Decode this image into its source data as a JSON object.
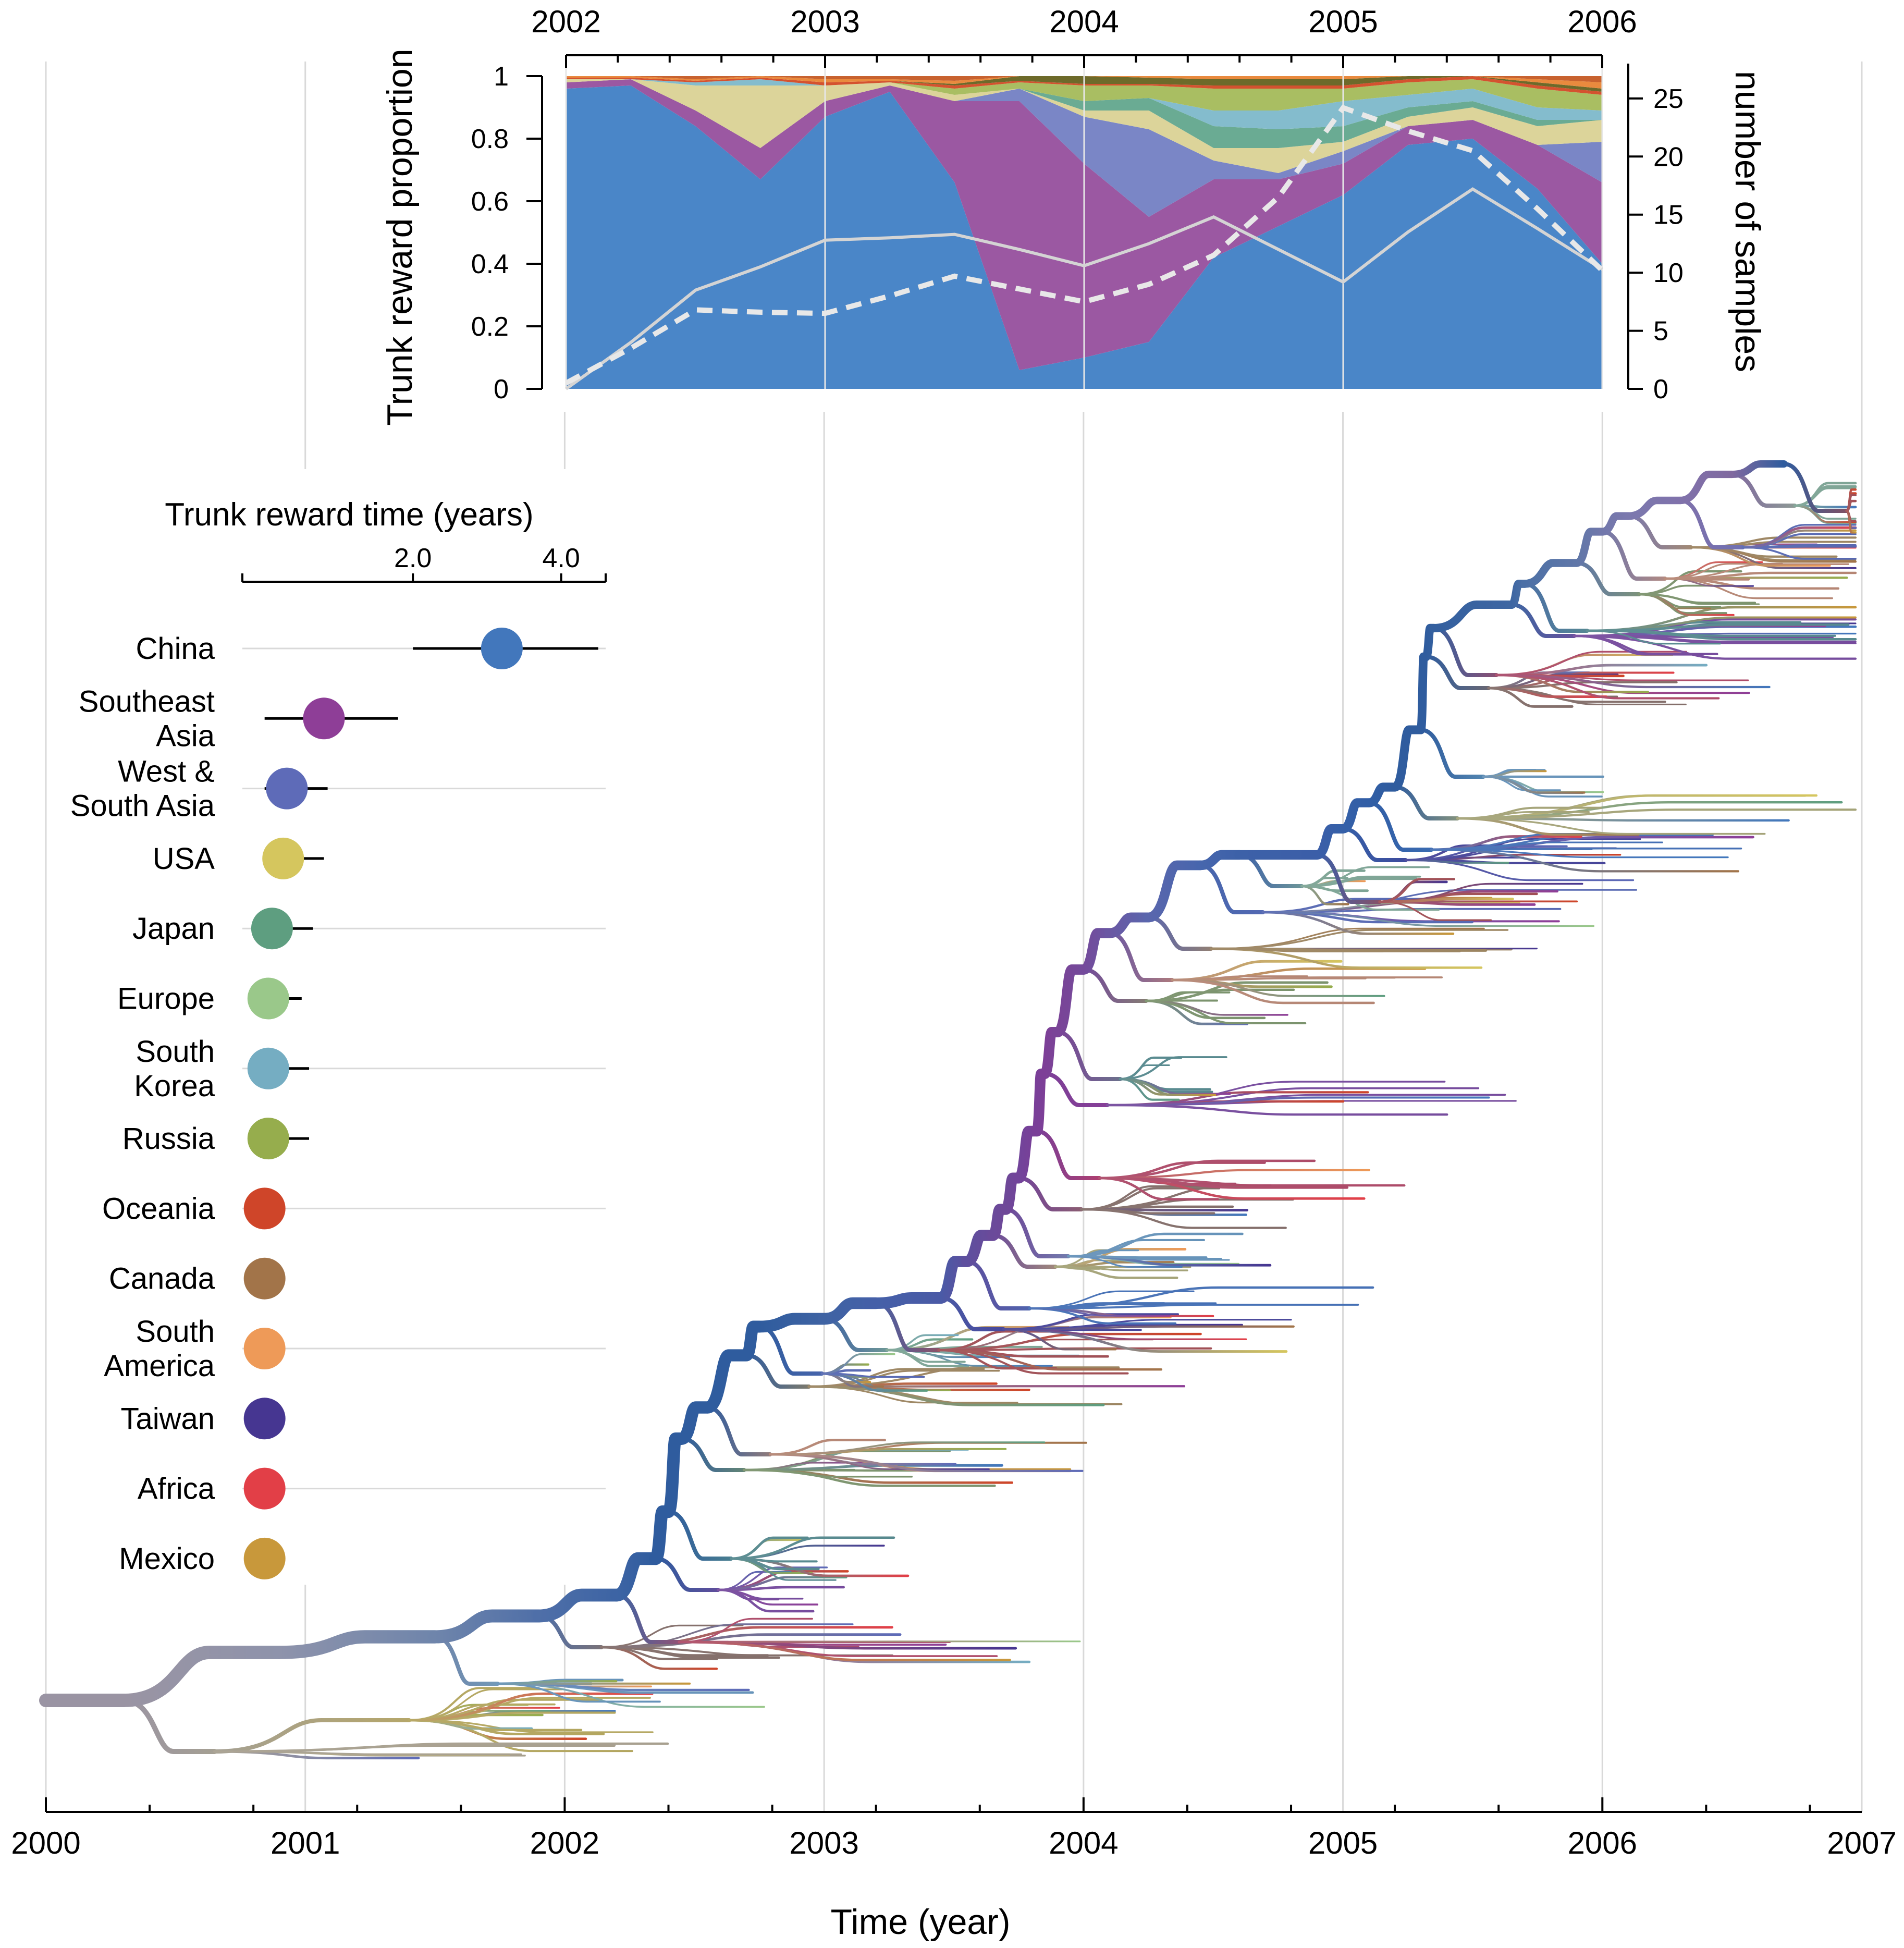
{
  "chart_data": [
    {
      "type": "area",
      "panel": "trunk-proportion",
      "ylabel": "Trunk reward proportion",
      "ylabel_right": "number of samples",
      "x": [
        2002.0,
        2002.25,
        2002.5,
        2002.75,
        2003.0,
        2003.25,
        2003.5,
        2003.75,
        2004.0,
        2004.25,
        2004.5,
        2004.75,
        2005.0,
        2005.25,
        2005.5,
        2005.75,
        2006.0
      ],
      "x_ticks": [
        "2002",
        "2003",
        "2004",
        "2005",
        "2006"
      ],
      "ylim": [
        0,
        1
      ],
      "y_ticks": [
        "0",
        "0.2",
        "0.4",
        "0.6",
        "0.8",
        "1"
      ],
      "y2lim": [
        0,
        28
      ],
      "y2_ticks": [
        "0",
        "5",
        "10",
        "15",
        "20",
        "25"
      ],
      "series": [
        {
          "region": "China",
          "color": "#4a86c8",
          "values": [
            0.96,
            0.97,
            0.84,
            0.67,
            0.87,
            0.95,
            0.66,
            0.06,
            0.1,
            0.15,
            0.42,
            0.52,
            0.62,
            0.78,
            0.8,
            0.64,
            0.4
          ]
        },
        {
          "region": "Southeast Asia",
          "color": "#9b58a2",
          "values": [
            0.02,
            0.02,
            0.05,
            0.1,
            0.05,
            0.02,
            0.26,
            0.86,
            0.62,
            0.4,
            0.25,
            0.15,
            0.1,
            0.06,
            0.06,
            0.14,
            0.26
          ]
        },
        {
          "region": "West & South Asia",
          "color": "#7a86c6",
          "values": [
            0.0,
            0.0,
            0.0,
            0.0,
            0.0,
            0.0,
            0.0,
            0.04,
            0.15,
            0.28,
            0.06,
            0.02,
            0.04,
            0.0,
            0.0,
            0.0,
            0.13
          ]
        },
        {
          "region": "USA",
          "color": "#dcd49a",
          "values": [
            0.01,
            0.0,
            0.08,
            0.2,
            0.05,
            0.01,
            0.02,
            0.0,
            0.02,
            0.06,
            0.04,
            0.08,
            0.03,
            0.03,
            0.04,
            0.06,
            0.07
          ]
        },
        {
          "region": "Japan",
          "color": "#6aab93",
          "values": [
            0.0,
            0.0,
            0.0,
            0.0,
            0.0,
            0.0,
            0.0,
            0.0,
            0.03,
            0.04,
            0.07,
            0.06,
            0.05,
            0.03,
            0.02,
            0.02,
            0.0
          ]
        },
        {
          "region": "Europe",
          "color": "#9cc98a",
          "values": [
            0.0,
            0.0,
            0.0,
            0.0,
            0.0,
            0.0,
            0.0,
            0.0,
            0.0,
            0.0,
            0.0,
            0.0,
            0.0,
            0.0,
            0.0,
            0.0,
            0.0
          ]
        },
        {
          "region": "South Korea",
          "color": "#84bccd",
          "values": [
            0.0,
            0.0,
            0.01,
            0.02,
            0.0,
            0.0,
            0.0,
            0.0,
            0.0,
            0.0,
            0.05,
            0.06,
            0.08,
            0.04,
            0.04,
            0.04,
            0.03
          ]
        },
        {
          "region": "Russia",
          "color": "#a9be62",
          "values": [
            0.0,
            0.0,
            0.0,
            0.0,
            0.0,
            0.0,
            0.02,
            0.02,
            0.05,
            0.04,
            0.07,
            0.07,
            0.04,
            0.04,
            0.03,
            0.06,
            0.05
          ]
        },
        {
          "region": "Oceania",
          "color": "#d4522f",
          "values": [
            0.005,
            0.005,
            0.005,
            0.005,
            0.01,
            0.005,
            0.01,
            0.005,
            0.005,
            0.005,
            0.01,
            0.01,
            0.01,
            0.01,
            0.01,
            0.01,
            0.01
          ]
        },
        {
          "region": "Canada",
          "color": "#6d6a2a",
          "values": [
            0.0,
            0.0,
            0.0,
            0.0,
            0.0,
            0.0,
            0.005,
            0.02,
            0.025,
            0.02,
            0.02,
            0.02,
            0.02,
            0.01,
            0.01,
            0.01,
            0.01
          ]
        },
        {
          "region": "South America",
          "color": "#e98a3e",
          "values": [
            0.005,
            0.005,
            0.005,
            0.005,
            0.01,
            0.005,
            0.01,
            0.005,
            0.005,
            0.005,
            0.01,
            0.01,
            0.01,
            0.01,
            0.01,
            0.01,
            0.02
          ]
        }
      ],
      "samples_solid": [
        0.0,
        4.0,
        8.5,
        10.5,
        12.8,
        13.0,
        13.3,
        12.0,
        10.6,
        12.5,
        14.8,
        12.0,
        9.2,
        13.5,
        17.2,
        13.8,
        10.3
      ],
      "samples_dashed": [
        0.5,
        3.5,
        6.8,
        6.6,
        6.5,
        8.0,
        9.7,
        8.6,
        7.5,
        9.0,
        11.5,
        16.5,
        24.2,
        22.2,
        20.5,
        15.5,
        10.2
      ]
    },
    {
      "type": "scatter",
      "panel": "trunk-reward-time",
      "title": "Trunk reward time (years)",
      "x_ticks": [
        "2.0",
        "4.0"
      ],
      "xlim": [
        -0.3,
        4.6
      ],
      "points": [
        {
          "region": "China",
          "label": "China",
          "color": "#4277bc",
          "value": 3.2,
          "low": 2.0,
          "high": 4.5
        },
        {
          "region": "Southeast Asia",
          "label": "Southeast Asia",
          "color": "#8e3e97",
          "value": 0.8,
          "low": 0.0,
          "high": 1.8
        },
        {
          "region": "West & South Asia",
          "label": "West & South Asia",
          "color": "#5e6bb8",
          "value": 0.3,
          "low": 0.0,
          "high": 0.85
        },
        {
          "region": "USA",
          "label": "USA",
          "color": "#d5c65e",
          "value": 0.25,
          "low": 0.0,
          "high": 0.8
        },
        {
          "region": "Japan",
          "label": "Japan",
          "color": "#5e9e80",
          "value": 0.1,
          "low": 0.0,
          "high": 0.65
        },
        {
          "region": "Europe",
          "label": "Europe",
          "color": "#9ac88a",
          "value": 0.05,
          "low": 0.0,
          "high": 0.5
        },
        {
          "region": "South Korea",
          "label": "South Korea",
          "color": "#75adc2",
          "value": 0.05,
          "low": 0.0,
          "high": 0.6
        },
        {
          "region": "Russia",
          "label": "Russia",
          "color": "#96ad4d",
          "value": 0.05,
          "low": 0.0,
          "high": 0.6
        },
        {
          "region": "Oceania",
          "label": "Oceania",
          "color": "#cf4529",
          "value": 0.0,
          "low": 0.0,
          "high": 0.0
        },
        {
          "region": "Canada",
          "label": "Canada",
          "color": "#a27449",
          "value": 0.0,
          "low": 0.0,
          "high": 0.0
        },
        {
          "region": "South America",
          "label": "South America",
          "color": "#ee9a58",
          "value": 0.0,
          "low": 0.0,
          "high": 0.0
        },
        {
          "region": "Taiwan",
          "label": "Taiwan",
          "color": "#463691",
          "value": 0.0,
          "low": 0.0,
          "high": 0.0
        },
        {
          "region": "Africa",
          "label": "Africa",
          "color": "#e23f47",
          "value": 0.0,
          "low": 0.0,
          "high": 0.0
        },
        {
          "region": "Mexico",
          "label": "Mexico",
          "color": "#c8983b",
          "value": 0.0,
          "low": 0.0,
          "high": 0.0
        }
      ]
    },
    {
      "type": "tree",
      "panel": "phylogeny",
      "xlabel": "Time (year)",
      "xlim": [
        2000,
        2007
      ],
      "x_ticks": [
        "2000",
        "2001",
        "2002",
        "2003",
        "2004",
        "2005",
        "2006",
        "2007"
      ],
      "trunk_color": "#2f5c9e",
      "root_color": "#9a94a3"
    }
  ]
}
